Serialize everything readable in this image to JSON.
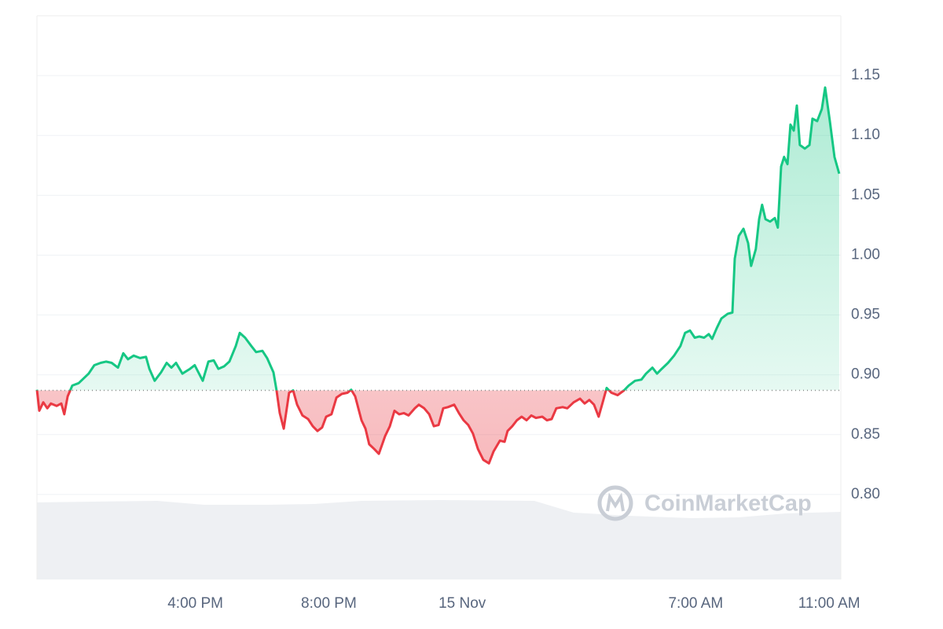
{
  "chart_data": {
    "type": "line",
    "watermark": "CoinMarketCap",
    "baseline": 0.887,
    "up_color": "#16c784",
    "down_color": "#ea3943",
    "xlim": [
      0,
      24.1
    ],
    "xticks": [
      {
        "value": 4.75,
        "label": "4:00 PM"
      },
      {
        "value": 8.75,
        "label": "8:00 PM"
      },
      {
        "value": 12.75,
        "label": "15 Nov"
      },
      {
        "value": 19.75,
        "label": "7:00 AM"
      },
      {
        "value": 23.75,
        "label": "11:00 AM"
      }
    ],
    "ylim": [
      0.729,
      1.2
    ],
    "yticks": [
      {
        "value": 0.8,
        "label": "0.80"
      },
      0.85,
      {
        "value": 0.9,
        "label": "0.90"
      },
      0.95,
      {
        "value": 1.0,
        "label": "1.00"
      },
      1.05,
      {
        "value": 1.1,
        "label": "1.10"
      },
      1.15
    ],
    "grid": true,
    "x": [
      0,
      0.07,
      0.19,
      0.31,
      0.42,
      0.59,
      0.73,
      0.82,
      0.92,
      1.06,
      1.25,
      1.44,
      1.55,
      1.72,
      1.91,
      2.07,
      2.24,
      2.43,
      2.59,
      2.73,
      2.9,
      3.09,
      3.27,
      3.37,
      3.53,
      3.72,
      3.89,
      4.03,
      4.17,
      4.36,
      4.59,
      4.73,
      4.97,
      5.14,
      5.3,
      5.44,
      5.61,
      5.77,
      5.96,
      6.08,
      6.24,
      6.43,
      6.57,
      6.76,
      6.9,
      7.09,
      7.18,
      7.28,
      7.4,
      7.56,
      7.68,
      7.8,
      7.96,
      8.13,
      8.27,
      8.41,
      8.55,
      8.67,
      8.83,
      8.98,
      9.14,
      9.31,
      9.42,
      9.54,
      9.73,
      9.85,
      9.96,
      10.11,
      10.25,
      10.44,
      10.58,
      10.72,
      10.86,
      11.0,
      11.14,
      11.33,
      11.45,
      11.61,
      11.76,
      11.9,
      12.04,
      12.18,
      12.32,
      12.51,
      12.65,
      12.79,
      12.93,
      13.07,
      13.22,
      13.38,
      13.55,
      13.69,
      13.88,
      14.02,
      14.11,
      14.25,
      14.39,
      14.53,
      14.68,
      14.82,
      14.96,
      15.15,
      15.29,
      15.43,
      15.57,
      15.76,
      15.9,
      16.09,
      16.28,
      16.42,
      16.56,
      16.7,
      16.84,
      16.98,
      17.08,
      17.22,
      17.41,
      17.6,
      17.74,
      17.93,
      18.12,
      18.26,
      18.45,
      18.59,
      18.73,
      18.92,
      19.1,
      19.29,
      19.43,
      19.58,
      19.72,
      19.86,
      20.0,
      20.14,
      20.24,
      20.38,
      20.52,
      20.71,
      20.85,
      20.92,
      21.04,
      21.18,
      21.32,
      21.41,
      21.55,
      21.65,
      21.74,
      21.84,
      21.98,
      22.12,
      22.21,
      22.31,
      22.4,
      22.5,
      22.59,
      22.69,
      22.78,
      22.87,
      23.02,
      23.16,
      23.25,
      23.39,
      23.53,
      23.63,
      23.77,
      23.91,
      24.05
    ],
    "values": [
      0.8875,
      0.87,
      0.877,
      0.872,
      0.876,
      0.874,
      0.876,
      0.867,
      0.882,
      0.891,
      0.893,
      0.898,
      0.901,
      0.908,
      0.91,
      0.911,
      0.91,
      0.906,
      0.918,
      0.913,
      0.916,
      0.914,
      0.915,
      0.905,
      0.895,
      0.902,
      0.91,
      0.906,
      0.91,
      0.901,
      0.905,
      0.908,
      0.895,
      0.911,
      0.912,
      0.905,
      0.907,
      0.911,
      0.924,
      0.935,
      0.931,
      0.924,
      0.919,
      0.92,
      0.914,
      0.902,
      0.8875,
      0.868,
      0.855,
      0.885,
      0.887,
      0.875,
      0.866,
      0.863,
      0.857,
      0.853,
      0.856,
      0.865,
      0.867,
      0.881,
      0.884,
      0.885,
      0.8875,
      0.882,
      0.862,
      0.855,
      0.842,
      0.838,
      0.834,
      0.849,
      0.857,
      0.87,
      0.867,
      0.868,
      0.866,
      0.872,
      0.875,
      0.872,
      0.867,
      0.857,
      0.858,
      0.872,
      0.873,
      0.875,
      0.868,
      0.862,
      0.858,
      0.851,
      0.838,
      0.829,
      0.826,
      0.836,
      0.845,
      0.844,
      0.853,
      0.857,
      0.862,
      0.865,
      0.862,
      0.866,
      0.864,
      0.865,
      0.862,
      0.863,
      0.872,
      0.873,
      0.872,
      0.877,
      0.88,
      0.876,
      0.879,
      0.875,
      0.865,
      0.879,
      0.889,
      0.885,
      0.883,
      0.887,
      0.891,
      0.895,
      0.896,
      0.901,
      0.906,
      0.901,
      0.905,
      0.91,
      0.916,
      0.924,
      0.935,
      0.937,
      0.931,
      0.932,
      0.931,
      0.934,
      0.93,
      0.939,
      0.947,
      0.951,
      0.952,
      0.997,
      1.016,
      1.022,
      1.01,
      0.991,
      1.005,
      1.03,
      1.042,
      1.03,
      1.028,
      1.031,
      1.023,
      1.074,
      1.082,
      1.076,
      1.109,
      1.104,
      1.125,
      1.092,
      1.089,
      1.092,
      1.114,
      1.112,
      1.122,
      1.14,
      1.112,
      1.082,
      1.068
    ]
  }
}
